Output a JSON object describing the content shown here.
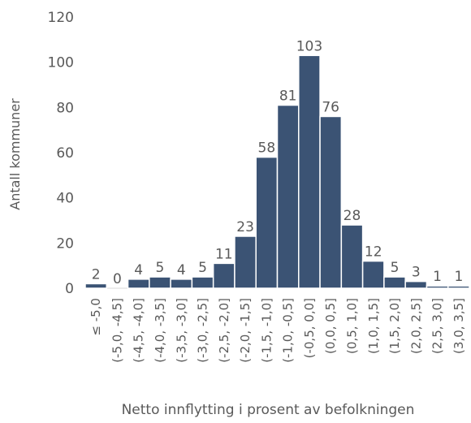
{
  "chart_data": {
    "type": "bar",
    "x_label": "Netto innflytting i prosent av befolkningen",
    "y_label": "Antall kommuner",
    "categories": [
      "≤ -5,0",
      "(-5,0, -4,5]",
      "(-4,5, -4,0]",
      "(-4,0, -3,5]",
      "(-3,5, -3,0]",
      "(-3,0, -2,5]",
      "(-2,5, -2,0]",
      "(-2,0, -1,5]",
      "(-1,5, -1,0]",
      "(-1,0, -0,5]",
      "(-0,5, 0,0]",
      "(0,0, 0,5]",
      "(0,5, 1,0]",
      "(1,0, 1,5]",
      "(1,5, 2,0]",
      "(2,0, 2,5]",
      "(2,5, 3,0]",
      "(3,0, 3,5]"
    ],
    "values": [
      2,
      0,
      4,
      5,
      4,
      5,
      11,
      23,
      58,
      81,
      103,
      76,
      28,
      12,
      5,
      3,
      1,
      1
    ],
    "color": "#3b5374",
    "ylim": [
      0,
      120
    ],
    "yticks": [
      0,
      20,
      40,
      60,
      80,
      100,
      120
    ],
    "grid": false
  }
}
